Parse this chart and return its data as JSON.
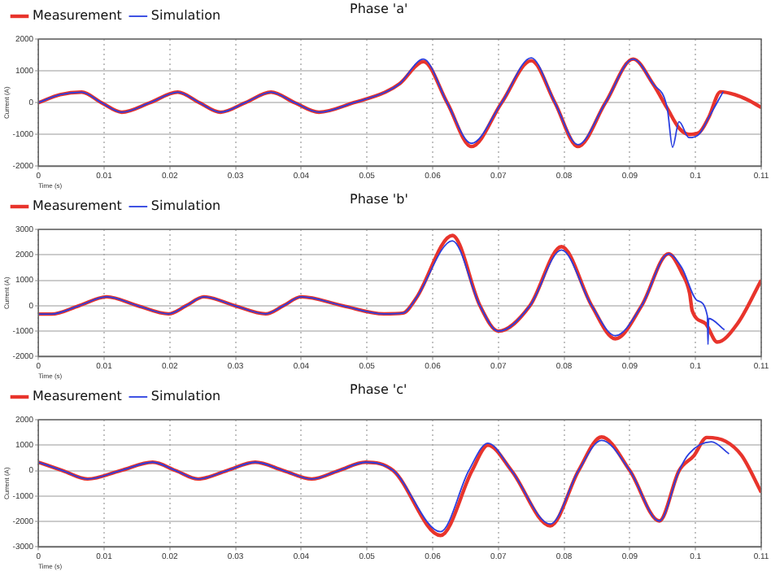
{
  "chart_data": [
    {
      "type": "line",
      "title": "Phase 'a'",
      "xlabel": "Time (s)",
      "ylabel": "Current (A)",
      "xlim": [
        0,
        0.11
      ],
      "xticks": [
        0,
        0.01,
        0.02,
        0.03,
        0.04,
        0.05,
        0.06,
        0.07,
        0.08,
        0.09,
        0.1,
        0.11
      ],
      "ylim": [
        -2000,
        2000
      ],
      "yticks": [
        -2000,
        -1000,
        0,
        1000,
        2000
      ],
      "grid": true,
      "legend": "top left",
      "series": [
        {
          "name": "Measurement",
          "color": "#e8342c",
          "x": [
            0,
            0.0033,
            0.0066,
            0.0096,
            0.0127,
            0.017,
            0.0212,
            0.0245,
            0.0277,
            0.0315,
            0.0354,
            0.039,
            0.0427,
            0.048,
            0.0528,
            0.055,
            0.0586,
            0.0622,
            0.0659,
            0.0705,
            0.075,
            0.0786,
            0.0821,
            0.0863,
            0.0905,
            0.0935,
            0.0957,
            0.0975,
            0.099,
            0.1005,
            0.102,
            0.1038,
            0.106,
            0.108,
            0.11
          ],
          "values": [
            0,
            250,
            330,
            0,
            -300,
            0,
            330,
            0,
            -300,
            0,
            330,
            0,
            -300,
            0,
            330,
            600,
            1290,
            0,
            -1380,
            0,
            1320,
            0,
            -1380,
            0,
            1370,
            600,
            -180,
            -800,
            -1000,
            -950,
            -470,
            340,
            250,
            80,
            -150
          ]
        },
        {
          "name": "Simulation",
          "color": "#2a3fe0",
          "x": [
            0,
            0.0033,
            0.0066,
            0.0096,
            0.0127,
            0.017,
            0.0212,
            0.0245,
            0.0277,
            0.0315,
            0.0354,
            0.039,
            0.0427,
            0.048,
            0.0528,
            0.055,
            0.0586,
            0.0622,
            0.0659,
            0.0705,
            0.075,
            0.0786,
            0.0821,
            0.0863,
            0.0905,
            0.0935,
            0.0957,
            0.0965,
            0.0975,
            0.099,
            0.1005,
            0.102,
            0.1042
          ],
          "values": [
            0,
            250,
            330,
            0,
            -300,
            0,
            330,
            0,
            -300,
            0,
            330,
            0,
            -300,
            0,
            330,
            600,
            1370,
            0,
            -1280,
            0,
            1410,
            0,
            -1320,
            0,
            1370,
            600,
            -180,
            -1400,
            -600,
            -1100,
            -1000,
            -470,
            340
          ]
        }
      ]
    },
    {
      "type": "line",
      "title": "Phase 'b'",
      "xlabel": "Time (s)",
      "ylabel": "Current (A)",
      "xlim": [
        0,
        0.11
      ],
      "xticks": [
        0,
        0.01,
        0.02,
        0.03,
        0.04,
        0.05,
        0.06,
        0.07,
        0.08,
        0.09,
        0.1,
        0.11
      ],
      "ylim": [
        -2000,
        3000
      ],
      "yticks": [
        -2000,
        -1000,
        0,
        1000,
        2000,
        3000
      ],
      "grid": true,
      "legend": "top left",
      "series": [
        {
          "name": "Measurement",
          "color": "#e8342c",
          "x": [
            0,
            0.002,
            0.0062,
            0.0104,
            0.0151,
            0.0198,
            0.0225,
            0.0252,
            0.0299,
            0.0346,
            0.0373,
            0.04,
            0.0463,
            0.0526,
            0.0555,
            0.0575,
            0.063,
            0.0672,
            0.07,
            0.0748,
            0.0796,
            0.0842,
            0.0878,
            0.0918,
            0.0959,
            0.0979,
            0.0991,
            0.0995,
            0.1015,
            0.1033,
            0.1064,
            0.11
          ],
          "values": [
            -330,
            -330,
            0,
            350,
            0,
            -320,
            0,
            350,
            0,
            -320,
            0,
            350,
            0,
            -320,
            -290,
            300,
            2760,
            0,
            -1000,
            0,
            2320,
            0,
            -1300,
            0,
            2040,
            1300,
            500,
            -200,
            -700,
            -1430,
            -700,
            1000
          ]
        },
        {
          "name": "Simulation",
          "color": "#2a3fe0",
          "x": [
            0,
            0.002,
            0.0062,
            0.0104,
            0.0151,
            0.0198,
            0.0225,
            0.0252,
            0.0299,
            0.0346,
            0.0373,
            0.04,
            0.0463,
            0.0526,
            0.0555,
            0.0575,
            0.063,
            0.0672,
            0.07,
            0.0748,
            0.0796,
            0.0842,
            0.0878,
            0.0918,
            0.0959,
            0.0979,
            0.1003,
            0.1018,
            0.1019,
            0.102,
            0.1044
          ],
          "values": [
            -330,
            -330,
            0,
            350,
            0,
            -320,
            0,
            350,
            0,
            -320,
            0,
            350,
            0,
            -320,
            -290,
            300,
            2550,
            0,
            -1000,
            0,
            2190,
            0,
            -1180,
            0,
            2040,
            1500,
            200,
            -400,
            -1520,
            -500,
            -950
          ]
        }
      ]
    },
    {
      "type": "line",
      "title": "Phase 'c'",
      "xlabel": "Time (s)",
      "ylabel": "Current (A)",
      "xlim": [
        0,
        0.11
      ],
      "xticks": [
        0,
        0.01,
        0.02,
        0.03,
        0.04,
        0.05,
        0.06,
        0.07,
        0.08,
        0.09,
        0.1,
        0.11
      ],
      "ylim": [
        -3000,
        2000
      ],
      "yticks": [
        -3000,
        -2000,
        -1000,
        0,
        1000,
        2000
      ],
      "grid": true,
      "legend": "top left",
      "series": [
        {
          "name": "Measurement",
          "color": "#e8342c",
          "x": [
            0,
            0.0037,
            0.0075,
            0.0125,
            0.0174,
            0.0209,
            0.0243,
            0.0287,
            0.033,
            0.0373,
            0.0416,
            0.0457,
            0.0498,
            0.054,
            0.0612,
            0.066,
            0.0684,
            0.072,
            0.0779,
            0.0822,
            0.0857,
            0.09,
            0.0945,
            0.0975,
            0.0998,
            0.1017,
            0.1046,
            0.107,
            0.11
          ],
          "values": [
            330,
            0,
            -330,
            0,
            330,
            0,
            -330,
            0,
            330,
            0,
            -330,
            0,
            330,
            0,
            -2550,
            0,
            1000,
            0,
            -2170,
            0,
            1320,
            0,
            -1980,
            0,
            600,
            1300,
            1150,
            600,
            -850
          ]
        },
        {
          "name": "Simulation",
          "color": "#2a3fe0",
          "x": [
            0,
            0.0037,
            0.0075,
            0.0125,
            0.0174,
            0.0209,
            0.0243,
            0.0287,
            0.033,
            0.0373,
            0.0416,
            0.0457,
            0.0498,
            0.054,
            0.0612,
            0.0655,
            0.0684,
            0.072,
            0.0779,
            0.0822,
            0.0857,
            0.09,
            0.0945,
            0.0975,
            0.099,
            0.1024,
            0.1051
          ],
          "values": [
            330,
            0,
            -330,
            0,
            330,
            0,
            -330,
            0,
            330,
            0,
            -330,
            0,
            330,
            0,
            -2400,
            0,
            1080,
            0,
            -2100,
            0,
            1190,
            0,
            -1980,
            0,
            660,
            1130,
            660
          ]
        }
      ]
    }
  ]
}
